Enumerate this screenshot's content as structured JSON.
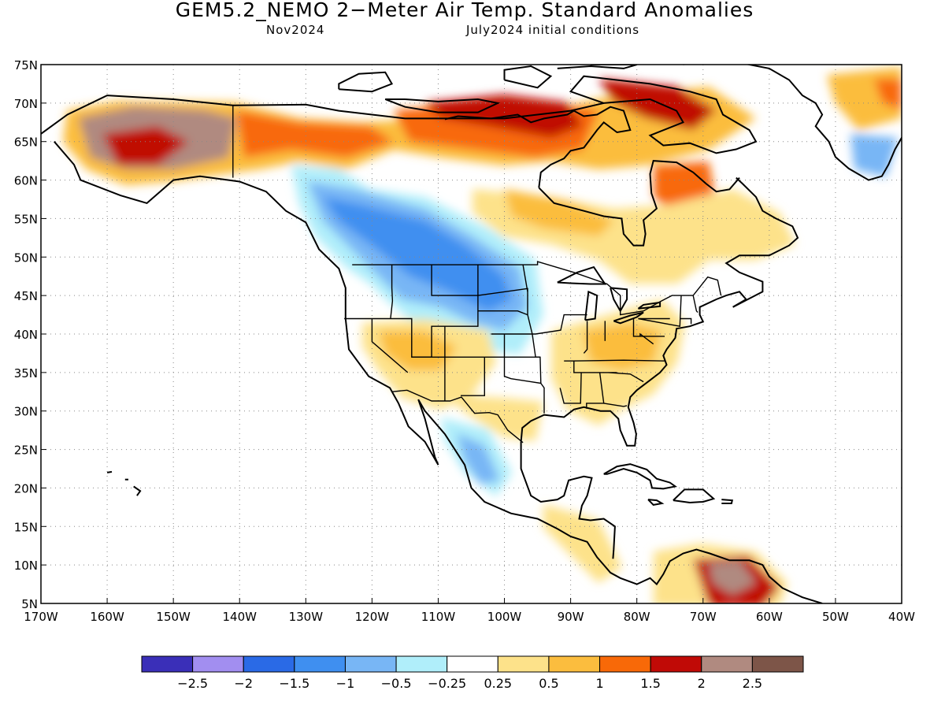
{
  "title": "GEM5.2_NEMO 2−Meter Air Temp. Standard Anomalies",
  "subtitle_left": "Nov2024",
  "subtitle_right": "July2024 initial conditions",
  "map": {
    "lon_range": [
      -170,
      -40
    ],
    "lat_range": [
      5,
      75
    ],
    "lon_ticks": [
      {
        "value": -170,
        "label": "170W"
      },
      {
        "value": -160,
        "label": "160W"
      },
      {
        "value": -150,
        "label": "150W"
      },
      {
        "value": -140,
        "label": "140W"
      },
      {
        "value": -130,
        "label": "130W"
      },
      {
        "value": -120,
        "label": "120W"
      },
      {
        "value": -110,
        "label": "110W"
      },
      {
        "value": -100,
        "label": "100W"
      },
      {
        "value": -90,
        "label": "90W"
      },
      {
        "value": -80,
        "label": "80W"
      },
      {
        "value": -70,
        "label": "70W"
      },
      {
        "value": -60,
        "label": "60W"
      },
      {
        "value": -50,
        "label": "50W"
      },
      {
        "value": -40,
        "label": "40W"
      }
    ],
    "lat_ticks": [
      {
        "value": 5,
        "label": "5N"
      },
      {
        "value": 10,
        "label": "10N"
      },
      {
        "value": 15,
        "label": "15N"
      },
      {
        "value": 20,
        "label": "20N"
      },
      {
        "value": 25,
        "label": "25N"
      },
      {
        "value": 30,
        "label": "30N"
      },
      {
        "value": 35,
        "label": "35N"
      },
      {
        "value": 40,
        "label": "40N"
      },
      {
        "value": 45,
        "label": "45N"
      },
      {
        "value": 50,
        "label": "50N"
      },
      {
        "value": 55,
        "label": "55N"
      },
      {
        "value": 60,
        "label": "60N"
      },
      {
        "value": 65,
        "label": "65N"
      },
      {
        "value": 70,
        "label": "70N"
      },
      {
        "value": 75,
        "label": "75N"
      }
    ],
    "grid": true
  },
  "colorbar": {
    "colors": [
      "#3a2fb8",
      "#a28ef0",
      "#2a6ae6",
      "#3f8ff0",
      "#78b6f5",
      "#b0eefa",
      "#ffffff",
      "#fde28a",
      "#fbbd3e",
      "#f86908",
      "#c00a06",
      "#b08a80",
      "#7d5548"
    ],
    "labels": [
      "−2.5",
      "−2",
      "−1.5",
      "−1",
      "−0.5",
      "−0.25",
      "0.25",
      "0.5",
      "1",
      "1.5",
      "2",
      "2.5"
    ]
  }
}
